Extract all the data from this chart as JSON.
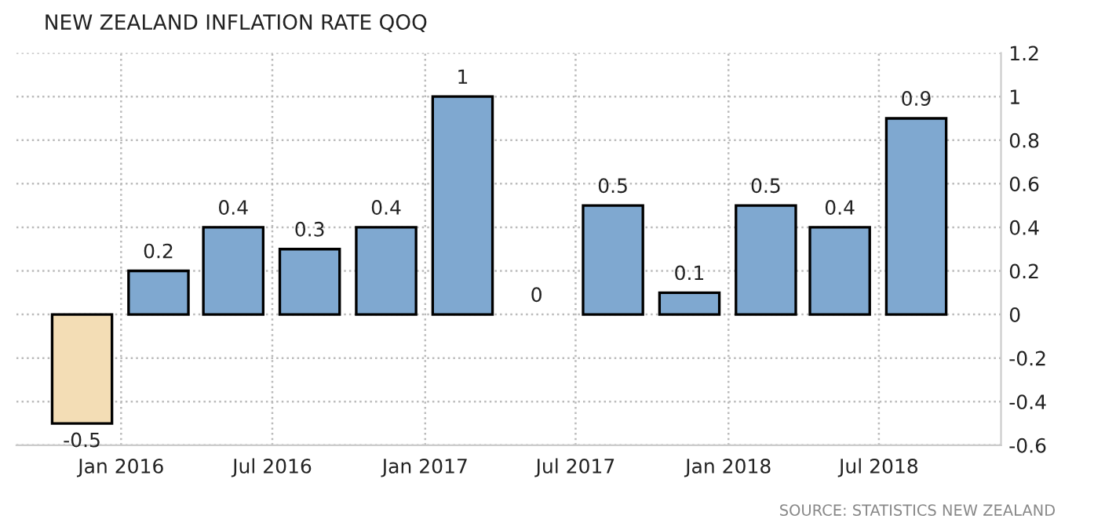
{
  "chart_data": {
    "type": "bar",
    "title": "NEW ZEALAND INFLATION RATE QOQ",
    "x": [
      "2015-11-15",
      "2016-02-15",
      "2016-05-15",
      "2016-08-15",
      "2016-11-15",
      "2017-02-15",
      "2017-05-15",
      "2017-08-15",
      "2017-11-15",
      "2018-02-15",
      "2018-05-15",
      "2018-08-15"
    ],
    "values": [
      -0.5,
      0.2,
      0.4,
      0.3,
      0.4,
      1,
      0,
      0.5,
      0.1,
      0.5,
      0.4,
      0.9
    ],
    "colors": [
      "#f3ddb5",
      "#7fa8d0",
      "#7fa8d0",
      "#7fa8d0",
      "#7fa8d0",
      "#7fa8d0",
      "#7fa8d0",
      "#7fa8d0",
      "#7fa8d0",
      "#7fa8d0",
      "#7fa8d0",
      "#7fa8d0"
    ],
    "data_labels": true,
    "xlim": [
      "2015-08-28",
      "2018-11-25"
    ],
    "xticks": [
      {
        "value": "2016-01-01",
        "label": "Jan 2016"
      },
      {
        "value": "2016-07-01",
        "label": "Jul 2016"
      },
      {
        "value": "2017-01-01",
        "label": "Jan 2017"
      },
      {
        "value": "2017-07-01",
        "label": "Jul 2017"
      },
      {
        "value": "2018-01-01",
        "label": "Jan 2018"
      },
      {
        "value": "2018-07-01",
        "label": "Jul 2018"
      }
    ],
    "ylim": [
      -0.6,
      1.2
    ],
    "yticks": [
      1.2,
      1,
      0.8,
      0.6,
      0.4,
      0.2,
      0,
      -0.2,
      -0.4,
      -0.6
    ],
    "grid": true,
    "annotations": [
      "SOURCE: STATISTICS NEW ZEALAND"
    ]
  }
}
